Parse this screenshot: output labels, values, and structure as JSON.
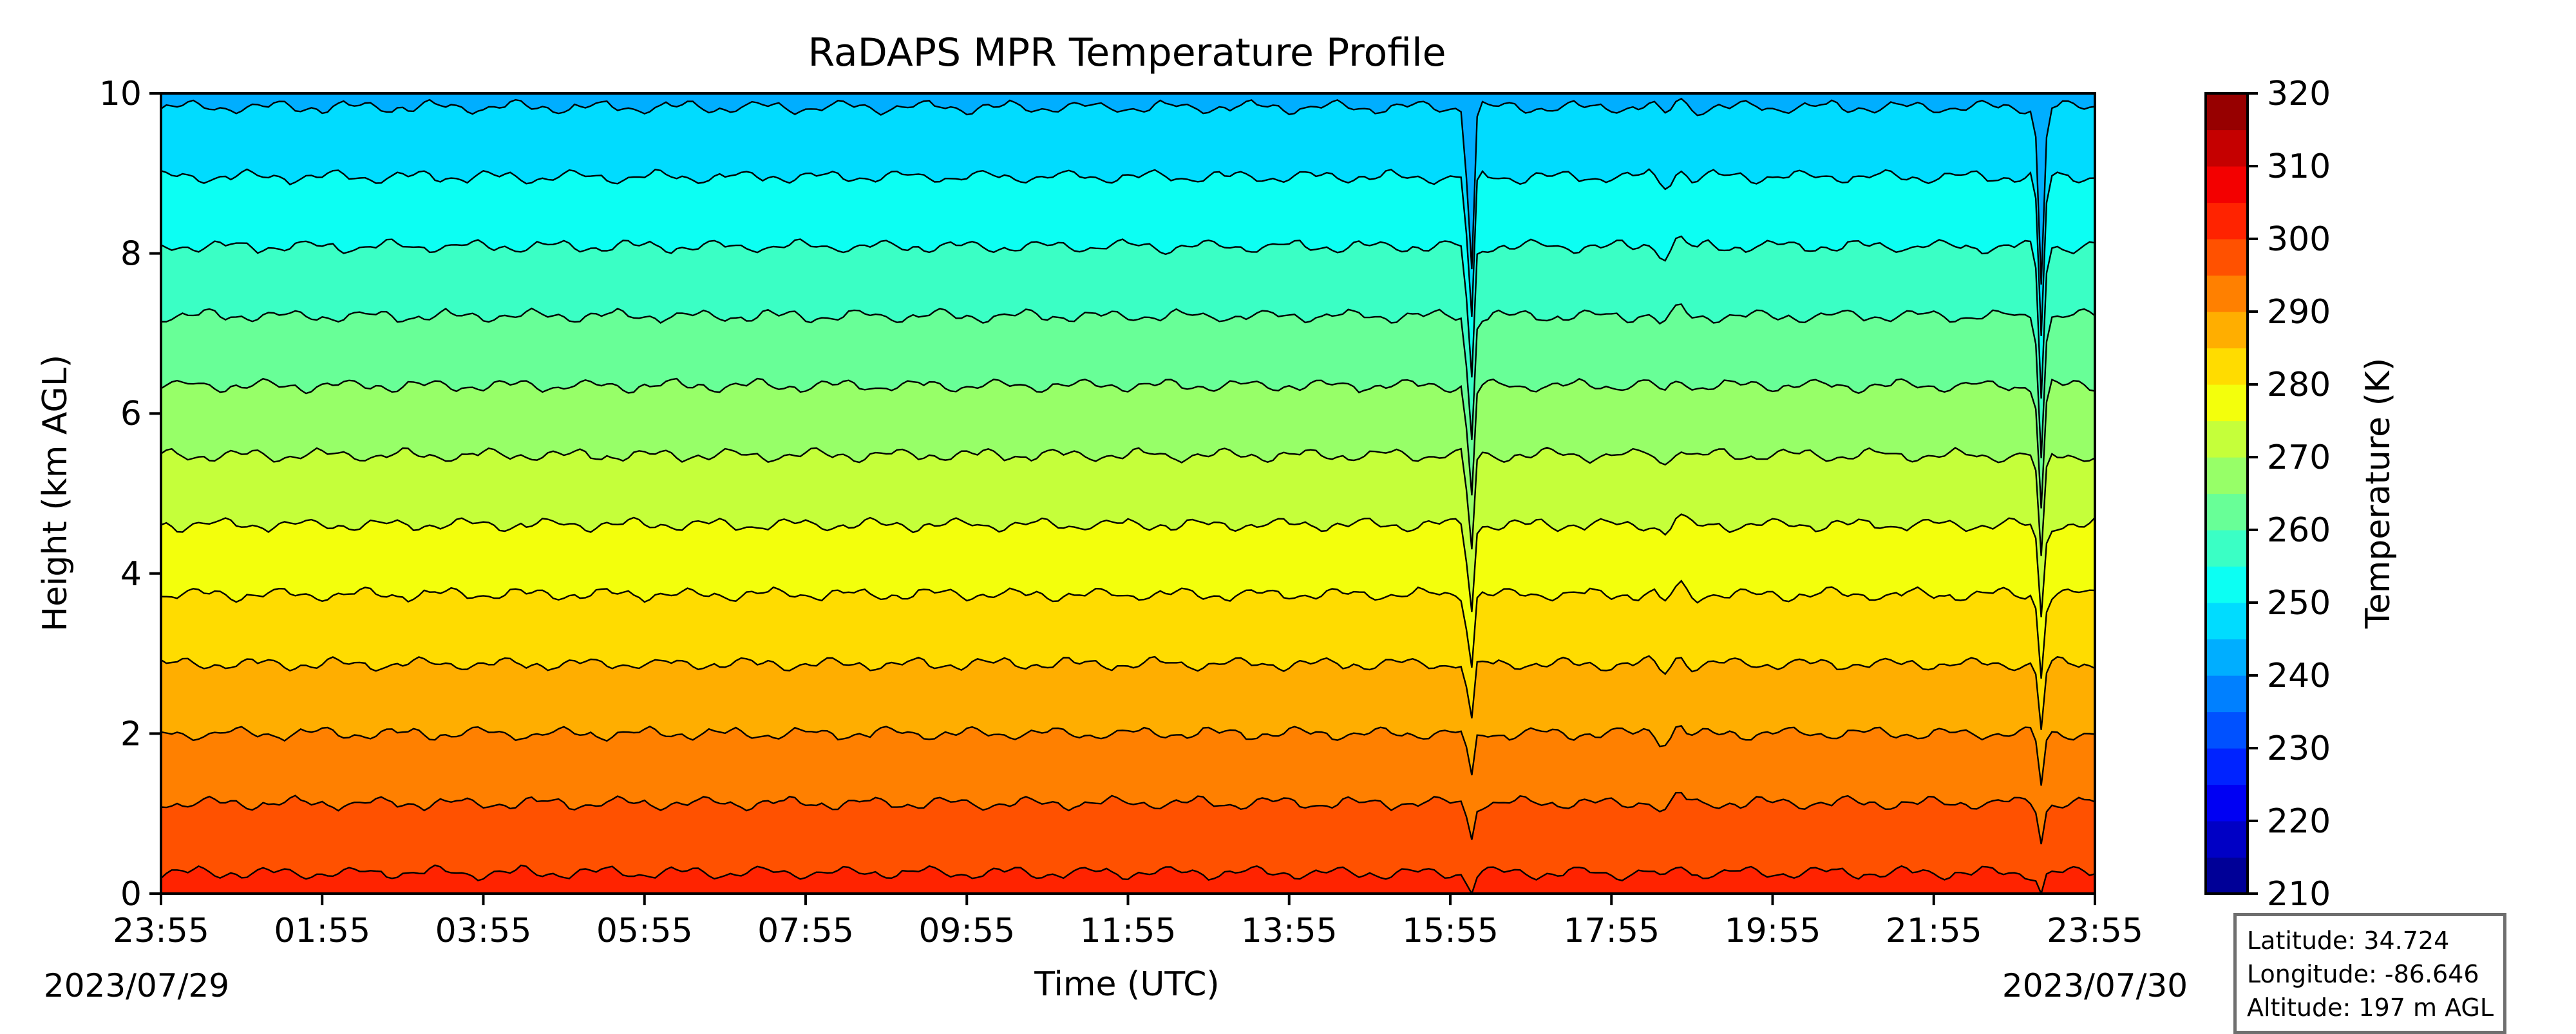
{
  "chart_data": {
    "type": "heatmap",
    "title": "RaDAPS MPR Temperature Profile",
    "xlabel": "Time (UTC)",
    "ylabel": "Height (km AGL)",
    "colorbar_label": "Temperature (K)",
    "x_tick_labels": [
      "23:55",
      "01:55",
      "03:55",
      "05:55",
      "07:55",
      "09:55",
      "11:55",
      "13:55",
      "15:55",
      "17:55",
      "19:55",
      "21:55",
      "23:55"
    ],
    "x_start_date": "2023/07/29",
    "x_end_date": "2023/07/30",
    "ylim": [
      0,
      10
    ],
    "y_ticks": [
      0,
      2,
      4,
      6,
      8,
      10
    ],
    "clim": [
      210,
      320
    ],
    "colorbar_ticks": [
      210,
      220,
      230,
      240,
      250,
      260,
      270,
      280,
      290,
      300,
      310,
      320
    ],
    "colormap": "jet",
    "contour_interval_K": 5,
    "surface_temperature_K": 301.5,
    "lapse_rate_K_per_km": 5.75,
    "contours_at_start_km": [
      0.1,
      0.65,
      1.25,
      1.85,
      2.5,
      3.25,
      4.1,
      5.0,
      5.85,
      6.65,
      7.35,
      8.05,
      8.8,
      9.5
    ],
    "disturbances": [
      {
        "time": "16:10",
        "type": "sharp dip"
      },
      {
        "time": "18:40",
        "type": "wave"
      },
      {
        "time": "23:15",
        "type": "sharp dip"
      }
    ],
    "grid": false
  },
  "info": {
    "latitude": "Latitude: 34.724",
    "longitude": "Longitude: -86.646",
    "altitude": "Altitude: 197 m AGL"
  }
}
